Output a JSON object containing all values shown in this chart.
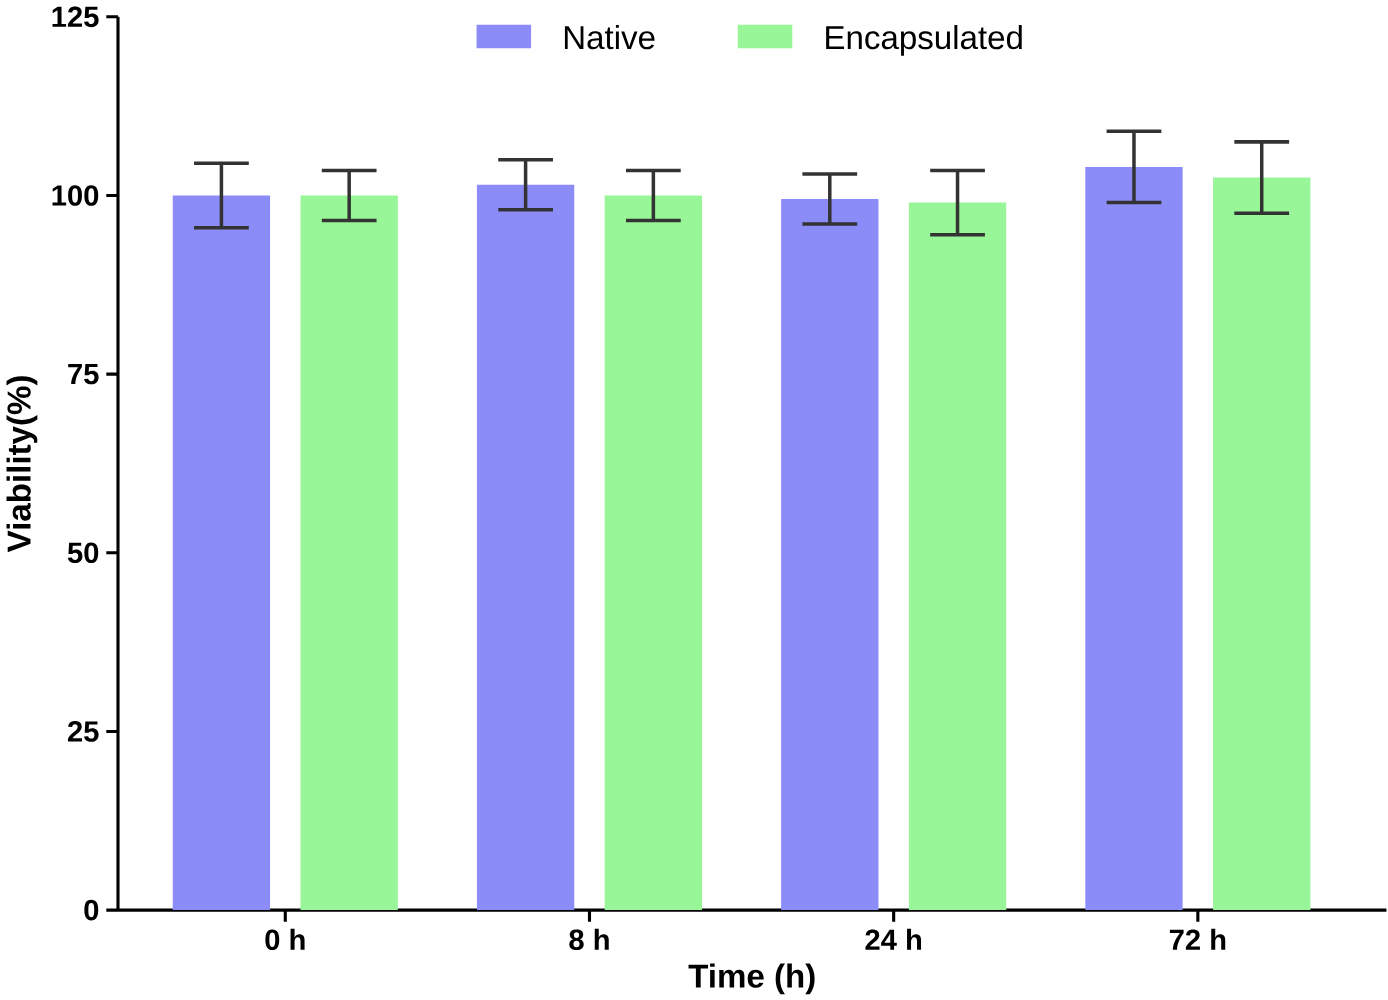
{
  "chart_data": {
    "type": "bar",
    "xlabel": "Time (h)",
    "ylabel": "Viability(%)",
    "categories": [
      "0 h",
      "8 h",
      "24 h",
      "72 h"
    ],
    "series": [
      {
        "name": "Native",
        "color": "#8c8cf8",
        "values": [
          100,
          101.5,
          99.5,
          104
        ],
        "errors": [
          4.5,
          3.5,
          3.5,
          5
        ]
      },
      {
        "name": "Encapsulated",
        "color": "#98f598",
        "values": [
          100,
          100,
          99,
          102.5
        ],
        "errors": [
          3.5,
          3.5,
          4.5,
          5
        ]
      }
    ],
    "ylim": [
      0,
      125
    ],
    "yticks": [
      0,
      25,
      50,
      75,
      100,
      125
    ],
    "grid": false,
    "legend": "top"
  }
}
